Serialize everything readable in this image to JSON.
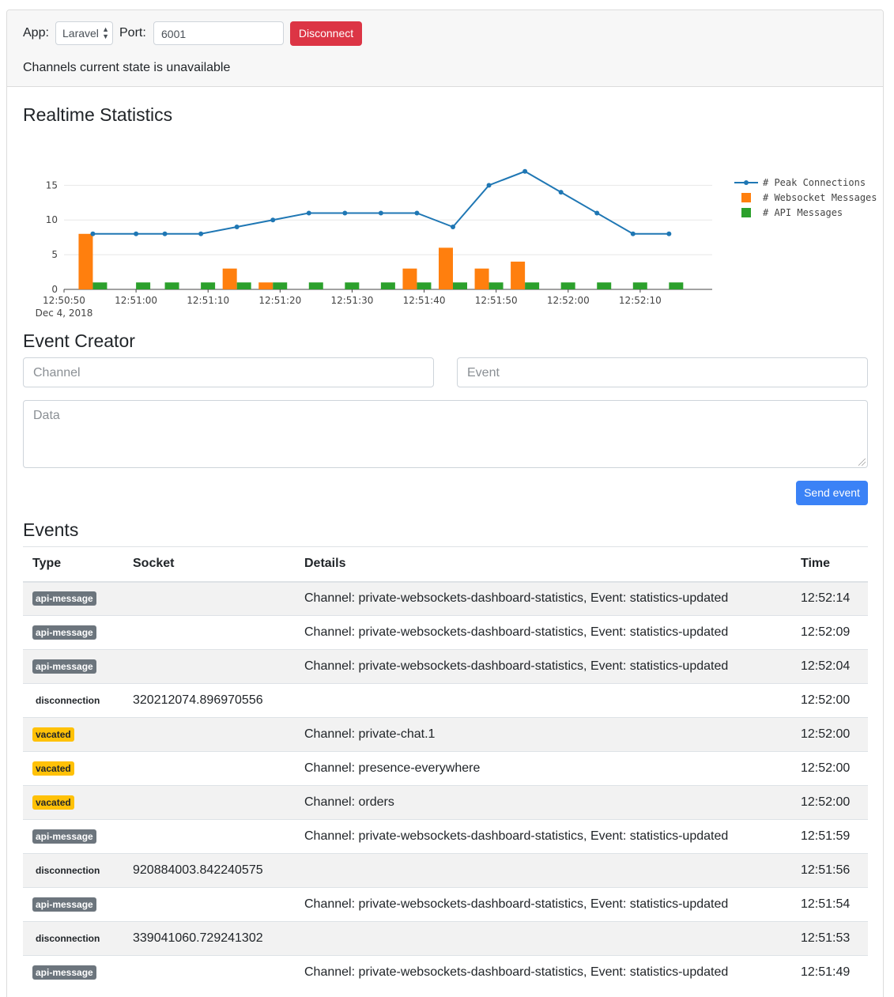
{
  "header": {
    "app_label": "App:",
    "app_selected": "Laravel",
    "port_label": "Port:",
    "port_value": "6001",
    "disconnect_label": "Disconnect",
    "state_text": "Channels current state is unavailable"
  },
  "stats": {
    "title": "Realtime Statistics"
  },
  "chart_data": {
    "type": "bar",
    "x": [
      "12:50:54",
      "12:51:00",
      "12:51:04",
      "12:51:09",
      "12:51:14",
      "12:51:19",
      "12:51:24",
      "12:51:29",
      "12:51:34",
      "12:51:39",
      "12:51:44",
      "12:51:49",
      "12:51:54",
      "12:51:59",
      "12:52:04",
      "12:52:09",
      "12:52:14"
    ],
    "x_tick_labels": [
      "12:50:50",
      "12:51:00",
      "12:51:10",
      "12:51:20",
      "12:51:30",
      "12:51:40",
      "12:51:50",
      "12:52:00",
      "12:52:10"
    ],
    "x_date_label": "Dec 4, 2018",
    "y_ticks": [
      0,
      5,
      10,
      15
    ],
    "ylim": [
      0,
      18
    ],
    "grid": true,
    "legend_position": "right",
    "series": [
      {
        "name": "# Peak Connections",
        "type": "line",
        "color": "#1f77b4",
        "values": [
          8,
          8,
          8,
          8,
          9,
          10,
          11,
          11,
          11,
          11,
          9,
          15,
          17,
          14,
          11,
          8,
          8
        ]
      },
      {
        "name": "# Websocket Messages",
        "type": "bar",
        "color": "#ff7f0e",
        "values": [
          8,
          0,
          0,
          0,
          3,
          1,
          0,
          0,
          0,
          3,
          6,
          3,
          4,
          0,
          0,
          0,
          0
        ]
      },
      {
        "name": "# API Messages",
        "type": "bar",
        "color": "#2ca02c",
        "values": [
          1,
          1,
          1,
          1,
          1,
          1,
          1,
          1,
          1,
          1,
          1,
          1,
          1,
          1,
          1,
          1,
          1
        ]
      }
    ]
  },
  "creator": {
    "title": "Event Creator",
    "channel_placeholder": "Channel",
    "event_placeholder": "Event",
    "data_placeholder": "Data",
    "send_label": "Send event"
  },
  "events": {
    "title": "Events",
    "columns": [
      "Type",
      "Socket",
      "Details",
      "Time"
    ],
    "rows": [
      {
        "type": "api-message",
        "socket": "",
        "details": "Channel: private-websockets-dashboard-statistics, Event: statistics-updated",
        "time": "12:52:14"
      },
      {
        "type": "api-message",
        "socket": "",
        "details": "Channel: private-websockets-dashboard-statistics, Event: statistics-updated",
        "time": "12:52:09"
      },
      {
        "type": "api-message",
        "socket": "",
        "details": "Channel: private-websockets-dashboard-statistics, Event: statistics-updated",
        "time": "12:52:04"
      },
      {
        "type": "disconnection",
        "socket": "320212074.896970556",
        "details": "",
        "time": "12:52:00"
      },
      {
        "type": "vacated",
        "socket": "",
        "details": "Channel: private-chat.1",
        "time": "12:52:00"
      },
      {
        "type": "vacated",
        "socket": "",
        "details": "Channel: presence-everywhere",
        "time": "12:52:00"
      },
      {
        "type": "vacated",
        "socket": "",
        "details": "Channel: orders",
        "time": "12:52:00"
      },
      {
        "type": "api-message",
        "socket": "",
        "details": "Channel: private-websockets-dashboard-statistics, Event: statistics-updated",
        "time": "12:51:59"
      },
      {
        "type": "disconnection",
        "socket": "920884003.842240575",
        "details": "",
        "time": "12:51:56"
      },
      {
        "type": "api-message",
        "socket": "",
        "details": "Channel: private-websockets-dashboard-statistics, Event: statistics-updated",
        "time": "12:51:54"
      },
      {
        "type": "disconnection",
        "socket": "339041060.729241302",
        "details": "",
        "time": "12:51:53"
      },
      {
        "type": "api-message",
        "socket": "",
        "details": "Channel: private-websockets-dashboard-statistics, Event: statistics-updated",
        "time": "12:51:49"
      }
    ]
  }
}
